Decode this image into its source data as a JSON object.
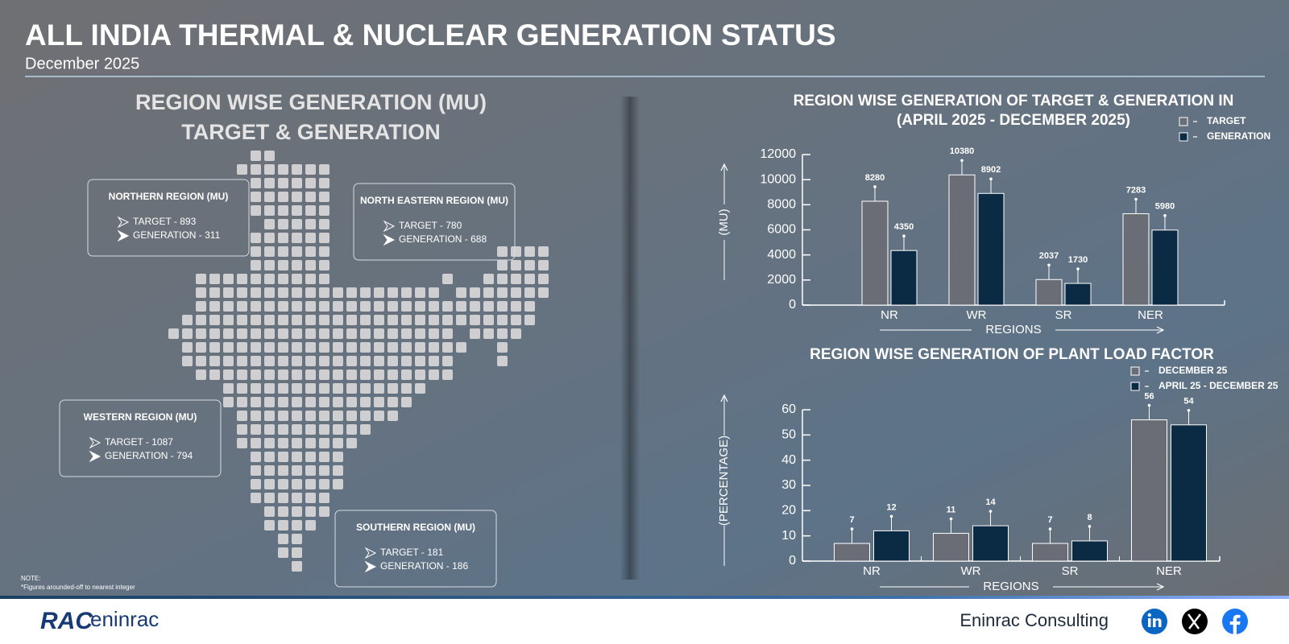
{
  "header": {
    "title": "ALL INDIA THERMAL & NUCLEAR GENERATION STATUS",
    "subtitle": "December 2025"
  },
  "map": {
    "title": [
      "REGION WISE GENERATION (MU)",
      "TARGET & GENERATION"
    ],
    "regions": [
      {
        "name": "NORTHERN REGION (MU)",
        "lines": [
          "TARGET - 893",
          "GENERATION - 311"
        ]
      },
      {
        "name": "NORTH EASTERN REGION (MU)",
        "lines": [
          "TARGET - 780",
          "GENERATION - 688"
        ]
      },
      {
        "name": "WESTERN REGION (MU)",
        "lines": [
          "TARGET - 1087",
          "GENERATION - 794"
        ]
      },
      {
        "name": "SOUTHERN REGION (MU)",
        "lines": [
          "TARGET - 181",
          "GENERATION - 186"
        ]
      }
    ]
  },
  "note": [
    "NOTE:",
    "*Figures arounded-off to nearest integer"
  ],
  "footer": {
    "logo_mark": "RAC",
    "logo_name": "eninrac",
    "company": "Eninrac Consulting"
  },
  "chart_data": [
    {
      "type": "bar",
      "title": "REGION WISE GENERATION OF TARGET & GENERATION IN",
      "subtitle": "(APRIL 2025 - DECEMBER 2025)",
      "x_label": "REGIONS",
      "y_label": "(MU)",
      "categories": [
        "NR",
        "WR",
        "SR",
        "NER"
      ],
      "series": [
        {
          "name": "TARGET",
          "color": "#6a6d76",
          "values": [
            8280,
            10380,
            2037,
            7283
          ]
        },
        {
          "name": "GENERATION",
          "color": "#0b2a44",
          "values": [
            4350,
            8902,
            1730,
            5980
          ]
        }
      ],
      "ylim": [
        0,
        12000
      ],
      "yticks": [
        0,
        2000,
        4000,
        6000,
        8000,
        10000,
        12000
      ],
      "legend": "top-right"
    },
    {
      "type": "bar",
      "title": "REGION WISE GENERATION OF PLANT LOAD FACTOR",
      "x_label": "REGIONS",
      "y_label": "(PERCENTAGE)",
      "categories": [
        "NR",
        "WR",
        "SR",
        "NER"
      ],
      "series": [
        {
          "name": "DECEMBER 25",
          "color": "#6a6d76",
          "values": [
            7,
            11,
            7,
            56
          ]
        },
        {
          "name": "APRIL 25 - DECEMBER 25",
          "color": "#0b2a44",
          "values": [
            12,
            14,
            8,
            54
          ]
        }
      ],
      "ylim": [
        0,
        60
      ],
      "yticks": [
        0,
        10,
        20,
        30,
        40,
        50,
        60
      ],
      "legend": "top-right"
    }
  ]
}
